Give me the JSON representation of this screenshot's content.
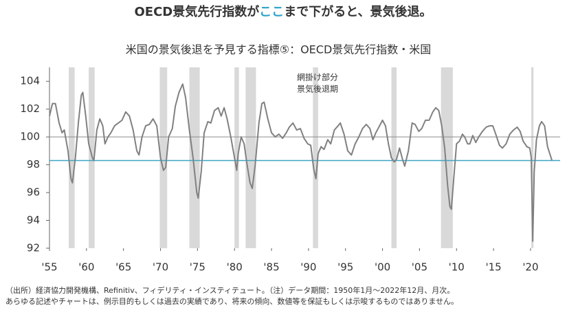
{
  "chart_data": {
    "type": "line",
    "title_parts": [
      "OECD景気先行指数が",
      "ここ",
      "まで下がると、景気後退。"
    ],
    "title_colors": [
      "#333333",
      "#2fa3c8",
      "#333333"
    ],
    "subtitle": "米国の景気後退を予見する指標⑤：OECD景気先行指数・米国",
    "annotation": [
      "網掛け部分",
      "景気後退期"
    ],
    "footnotes": [
      "（出所）経済協力開発機構、Refinitiv、フィデリティ・インスティテュート。（注）データ期間：1950年1月〜2022年12月、月次。",
      "あらゆる記述やチャートは、例示目的もしくは過去の実績であり、将来の傾向、数値等を保証もしくは示唆するものではありません。"
    ],
    "x": [
      1955.0,
      1955.4,
      1955.8,
      1956.3,
      1956.7,
      1957.0,
      1957.5,
      1957.9,
      1958.1,
      1958.5,
      1958.9,
      1959.3,
      1959.5,
      1959.9,
      1960.3,
      1960.8,
      1961.0,
      1961.4,
      1961.8,
      1962.2,
      1962.5,
      1962.9,
      1963.3,
      1963.8,
      1964.3,
      1964.8,
      1965.3,
      1965.8,
      1966.3,
      1966.8,
      1967.1,
      1967.5,
      1968.0,
      1968.5,
      1969.0,
      1969.5,
      1970.0,
      1970.4,
      1970.7,
      1971.1,
      1971.6,
      1972.0,
      1972.5,
      1973.0,
      1973.4,
      1973.9,
      1974.4,
      1974.9,
      1975.1,
      1975.5,
      1975.9,
      1976.4,
      1976.8,
      1977.3,
      1977.8,
      1978.2,
      1978.6,
      1979.0,
      1979.5,
      1979.9,
      1980.3,
      1980.5,
      1980.9,
      1981.3,
      1981.7,
      1982.1,
      1982.4,
      1982.8,
      1983.3,
      1983.7,
      1984.0,
      1984.5,
      1985.0,
      1985.5,
      1986.0,
      1986.5,
      1987.0,
      1987.4,
      1987.9,
      1988.4,
      1988.9,
      1989.4,
      1989.9,
      1990.3,
      1990.7,
      1991.0,
      1991.3,
      1991.7,
      1992.1,
      1992.6,
      1993.0,
      1993.5,
      1994.0,
      1994.3,
      1994.8,
      1995.3,
      1995.8,
      1996.3,
      1996.8,
      1997.3,
      1997.8,
      1998.3,
      1998.7,
      1999.1,
      1999.6,
      2000.0,
      2000.4,
      2000.8,
      2001.2,
      2001.6,
      2001.9,
      2002.3,
      2002.7,
      2003.0,
      2003.5,
      2004.0,
      2004.4,
      2004.9,
      2005.3,
      2005.8,
      2006.3,
      2006.8,
      2007.2,
      2007.6,
      2008.0,
      2008.4,
      2008.8,
      2009.1,
      2009.3,
      2009.7,
      2010.0,
      2010.4,
      2010.8,
      2011.1,
      2011.5,
      2011.8,
      2012.2,
      2012.6,
      2013.0,
      2013.5,
      2014.0,
      2014.5,
      2014.9,
      2015.3,
      2015.8,
      2016.2,
      2016.7,
      2017.2,
      2017.7,
      2018.2,
      2018.6,
      2019.0,
      2019.5,
      2019.9,
      2020.1,
      2020.3,
      2020.5,
      2020.8,
      2021.2,
      2021.5,
      2021.9,
      2022.3,
      2022.9
    ],
    "series": [
      {
        "color": "#808080",
        "values": [
          101.5,
          102.4,
          102.4,
          101.0,
          100.3,
          100.5,
          99.0,
          97.0,
          96.7,
          98.5,
          101.0,
          103.0,
          103.2,
          101.5,
          99.5,
          98.5,
          98.3,
          100.5,
          101.3,
          100.8,
          99.5,
          100.0,
          100.3,
          100.8,
          101.0,
          101.2,
          101.8,
          101.5,
          100.5,
          99.0,
          98.7,
          100.0,
          100.8,
          100.9,
          101.3,
          100.8,
          98.5,
          97.6,
          97.8,
          100.0,
          100.6,
          102.2,
          103.2,
          103.8,
          102.8,
          100.5,
          98.5,
          96.0,
          95.6,
          97.5,
          100.3,
          101.1,
          101.0,
          101.9,
          102.1,
          101.5,
          102.1,
          101.3,
          100.0,
          98.8,
          97.6,
          98.8,
          100.0,
          99.5,
          98.0,
          96.7,
          96.3,
          98.0,
          101.0,
          102.4,
          102.5,
          101.3,
          100.3,
          100.0,
          100.2,
          99.9,
          100.3,
          100.7,
          101.0,
          100.5,
          100.6,
          99.9,
          99.5,
          99.4,
          97.7,
          97.0,
          98.8,
          99.3,
          99.1,
          99.8,
          99.5,
          100.5,
          100.8,
          101.0,
          100.2,
          99.0,
          98.7,
          99.5,
          100.0,
          100.6,
          100.9,
          100.6,
          99.8,
          100.3,
          100.8,
          101.2,
          100.8,
          99.5,
          98.5,
          98.2,
          98.4,
          99.2,
          98.4,
          97.9,
          99.0,
          101.0,
          100.9,
          100.4,
          100.6,
          101.2,
          101.2,
          101.8,
          102.1,
          101.9,
          100.8,
          99.2,
          96.5,
          95.0,
          94.8,
          97.5,
          99.5,
          99.7,
          100.2,
          100.0,
          99.5,
          99.5,
          100.1,
          99.6,
          100.0,
          100.4,
          100.7,
          100.8,
          100.8,
          100.2,
          99.4,
          99.2,
          99.5,
          100.2,
          100.5,
          100.7,
          100.4,
          99.7,
          99.3,
          99.2,
          98.5,
          92.5,
          97.5,
          99.8,
          100.8,
          101.1,
          100.8,
          99.3,
          98.3
        ]
      }
    ],
    "shaded_periods": [
      [
        1957.6,
        1958.4
      ],
      [
        1960.3,
        1961.1
      ],
      [
        1969.9,
        1970.9
      ],
      [
        1973.9,
        1975.3
      ],
      [
        1980.0,
        1980.6
      ],
      [
        1981.5,
        1982.9
      ],
      [
        1990.6,
        1991.3
      ],
      [
        2001.2,
        2001.9
      ],
      [
        2007.9,
        2009.5
      ],
      [
        2020.1,
        2020.4
      ]
    ],
    "shade_color": "#d9d9d9",
    "reference_lines": [
      {
        "value": 100,
        "color": "#8c8c8c"
      },
      {
        "value": 98.3,
        "color": "#3aa6c4"
      }
    ],
    "xlim": [
      1955,
      2024
    ],
    "xticks": [
      {
        "value": 1955,
        "label": "'55"
      },
      {
        "value": 1960,
        "label": "'60"
      },
      {
        "value": 1965,
        "label": "'65"
      },
      {
        "value": 1970,
        "label": "'70"
      },
      {
        "value": 1975,
        "label": "'75"
      },
      {
        "value": 1980,
        "label": "'80"
      },
      {
        "value": 1985,
        "label": "'85"
      },
      {
        "value": 1990,
        "label": "'90"
      },
      {
        "value": 1995,
        "label": "'95"
      },
      {
        "value": 2000,
        "label": "'00"
      },
      {
        "value": 2005,
        "label": "'05"
      },
      {
        "value": 2010,
        "label": "'10"
      },
      {
        "value": 2015,
        "label": "'15"
      },
      {
        "value": 2020,
        "label": "'20"
      }
    ],
    "ylim": [
      92,
      105
    ],
    "yticks": [
      92,
      94,
      96,
      98,
      100,
      102,
      104
    ]
  }
}
